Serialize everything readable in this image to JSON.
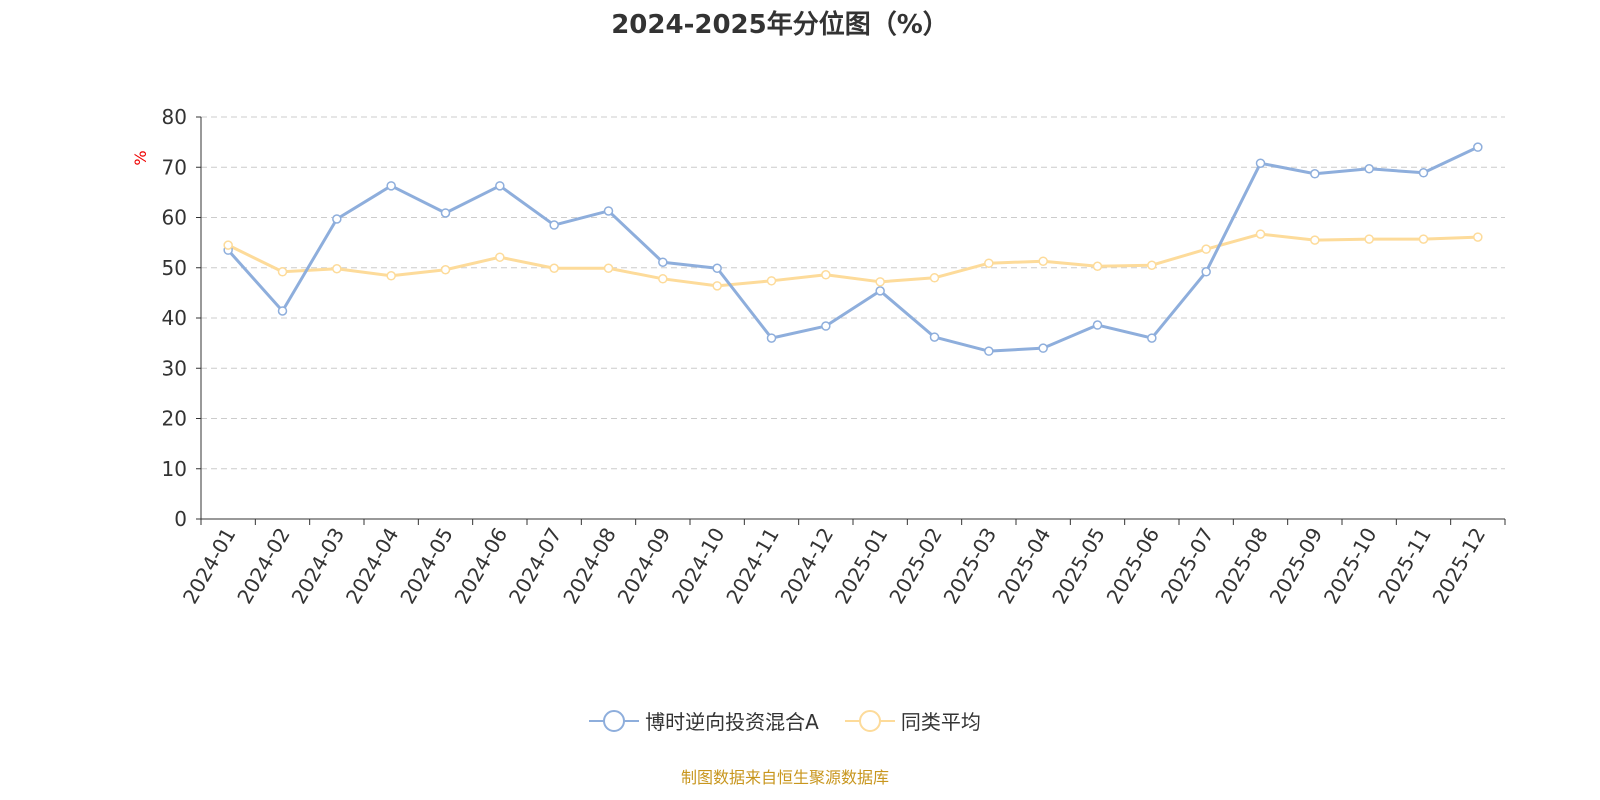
{
  "chart_data": {
    "type": "line",
    "title": "2024-2025年分位图（%）",
    "ylabel": "%",
    "xlabel": "",
    "ylim": [
      0,
      80
    ],
    "yticks": [
      0,
      10,
      20,
      30,
      40,
      50,
      60,
      70,
      80
    ],
    "grid": true,
    "legend_position": "bottom",
    "categories": [
      "2024-01",
      "2024-02",
      "2024-03",
      "2024-04",
      "2024-05",
      "2024-06",
      "2024-07",
      "2024-08",
      "2024-09",
      "2024-10",
      "2024-11",
      "2024-12",
      "2025-01",
      "2025-02",
      "2025-03",
      "2025-04",
      "2025-05",
      "2025-06",
      "2025-07",
      "2025-08",
      "2025-09",
      "2025-10",
      "2025-11",
      "2025-12"
    ],
    "series": [
      {
        "name": "博时逆向投资混合A",
        "color": "#8eaedc",
        "values": [
          53.5,
          41.4,
          59.7,
          66.3,
          60.9,
          66.3,
          58.5,
          61.3,
          51.1,
          49.9,
          36.0,
          38.4,
          45.4,
          36.2,
          33.4,
          34.0,
          38.6,
          36.0,
          49.2,
          70.8,
          68.7,
          69.7,
          68.9,
          74.0
        ]
      },
      {
        "name": "同类平均",
        "color": "#fddb9a",
        "values": [
          54.5,
          49.2,
          49.8,
          48.4,
          49.6,
          52.1,
          49.9,
          49.9,
          47.8,
          46.4,
          47.4,
          48.6,
          47.2,
          48.0,
          50.9,
          51.3,
          50.3,
          50.5,
          53.7,
          56.7,
          55.5,
          55.7,
          55.7,
          56.1
        ]
      }
    ]
  },
  "source": "制图数据来自恒生聚源数据库"
}
